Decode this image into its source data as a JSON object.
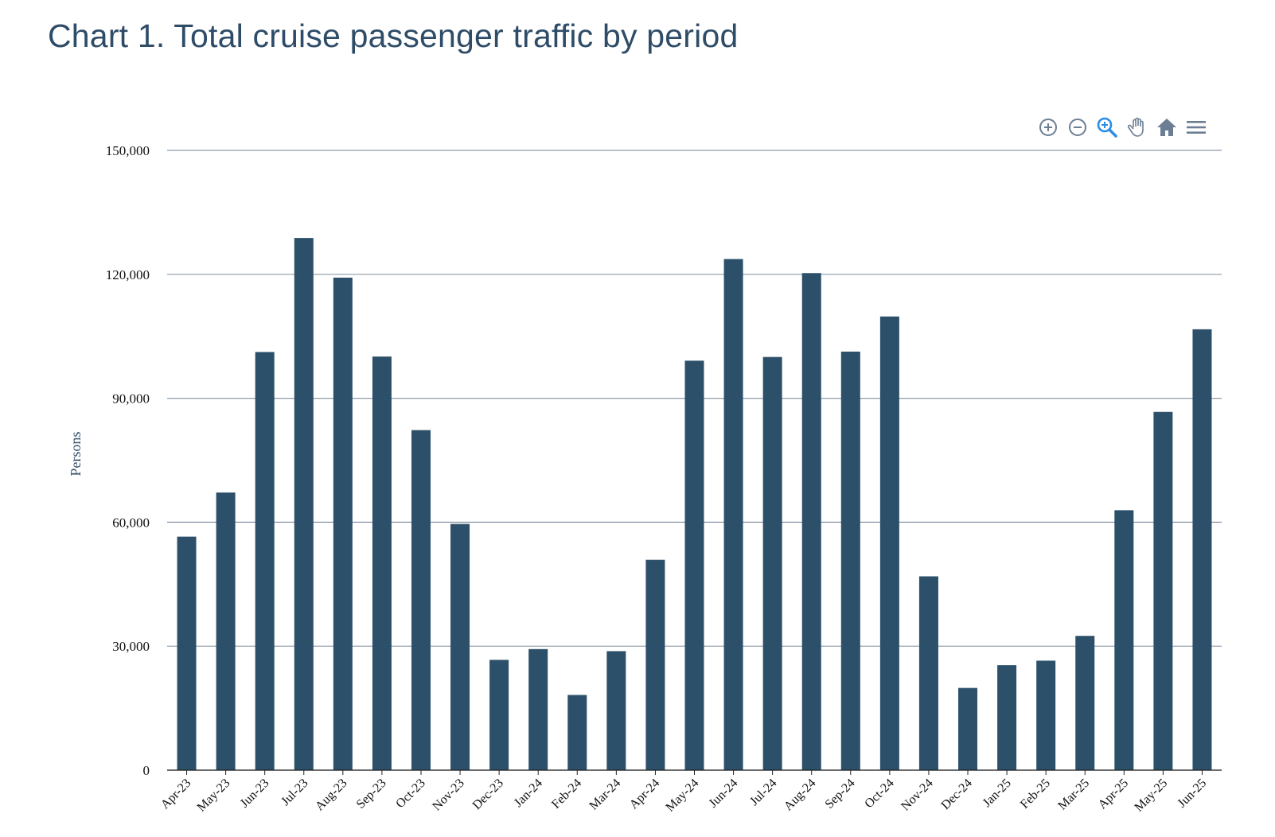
{
  "title": "Chart 1. Total cruise passenger traffic by period",
  "toolbar": [
    {
      "name": "zoom-in-icon",
      "color": "#6b7e93"
    },
    {
      "name": "zoom-out-icon",
      "color": "#6b7e93"
    },
    {
      "name": "selection-zoom-icon",
      "color": "#2b8ce6"
    },
    {
      "name": "pan-hand-icon",
      "color": "#6b7e93"
    },
    {
      "name": "reset-home-icon",
      "color": "#6b7e93"
    },
    {
      "name": "menu-icon",
      "color": "#6b7e93"
    }
  ],
  "chart_data": {
    "type": "bar",
    "ylabel": "Persons",
    "xlabel": "",
    "ylim": [
      0,
      150000
    ],
    "yticks": [
      "0",
      "30,000",
      "60,000",
      "90,000",
      "120,000",
      "150,000"
    ],
    "ytick_values": [
      0,
      30000,
      60000,
      90000,
      120000,
      150000
    ],
    "grid": true,
    "bar_color": "#2c5069",
    "categories": [
      "Apr-23",
      "May-23",
      "Jun-23",
      "Jul-23",
      "Aug-23",
      "Sep-23",
      "Oct-23",
      "Nov-23",
      "Dec-23",
      "Jan-24",
      "Feb-24",
      "Mar-24",
      "Apr-24",
      "May-24",
      "Jun-24",
      "Jul-24",
      "Aug-24",
      "Sep-24",
      "Oct-24",
      "Nov-24",
      "Dec-24",
      "Jan-25",
      "Feb-25",
      "Mar-25",
      "Apr-25",
      "May-25",
      "Jun-25"
    ],
    "values": [
      56500,
      67200,
      101200,
      128800,
      119200,
      100100,
      82300,
      59600,
      26700,
      29300,
      18200,
      28800,
      50900,
      99100,
      123700,
      100000,
      120300,
      101300,
      109800,
      46900,
      19900,
      25400,
      26500,
      32500,
      62900,
      86700,
      106700
    ]
  }
}
